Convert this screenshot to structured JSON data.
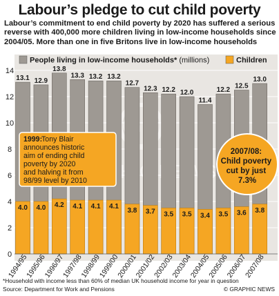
{
  "title": "Labour’s pledge to cut child poverty",
  "subtitle": "Labour’s commitment to end child poverty by 2020 has suffered a serious reverse with 400,000 more children living in low-income households since 2004/05. More than one in five Britons live in low-income households",
  "chart_data": {
    "type": "bar",
    "categories": [
      "1994/95",
      "1995/96",
      "1996/97",
      "1997/98",
      "1998/99",
      "1999/00",
      "2000/01",
      "2001/02",
      "2002/03",
      "2003/04",
      "2004/05",
      "2005/06",
      "2006/07",
      "2007/08"
    ],
    "series": [
      {
        "name": "People living in low-income households*",
        "values": [
          13.1,
          12.9,
          13.8,
          13.3,
          13.2,
          13.2,
          12.7,
          12.3,
          12.2,
          12.0,
          11.4,
          12.2,
          12.5,
          13.0
        ]
      },
      {
        "name": "Children",
        "values": [
          4.0,
          4.0,
          4.2,
          4.1,
          4.1,
          4.1,
          3.8,
          3.7,
          3.5,
          3.5,
          3.4,
          3.5,
          3.6,
          3.8
        ]
      }
    ],
    "units": "(millions)",
    "ylim": [
      0,
      14
    ],
    "yticks": [
      0,
      2,
      4,
      6,
      8,
      10,
      12,
      14
    ],
    "grid": true,
    "legend": "top",
    "colors": {
      "people": "#9e9993",
      "children": "#f5a623",
      "people_dark": "#6f6a64",
      "children_dark": "#c07d0c"
    }
  },
  "annotations": {
    "left_year": "1999:",
    "left_text": "Tony Blair announces historic aim of ending child poverty by 2020 and halving it from 98/99 level by 2010",
    "right_year": "2007/08:",
    "right_text": "Child poverty cut by just 7.3%"
  },
  "watermark": "GRAPHIC NEWS",
  "footnote": "*Household with income less than 60% of median UK household income for year in question",
  "source": "Source: Department for Work and Pensions",
  "credit": "© GRAPHIC NEWS"
}
